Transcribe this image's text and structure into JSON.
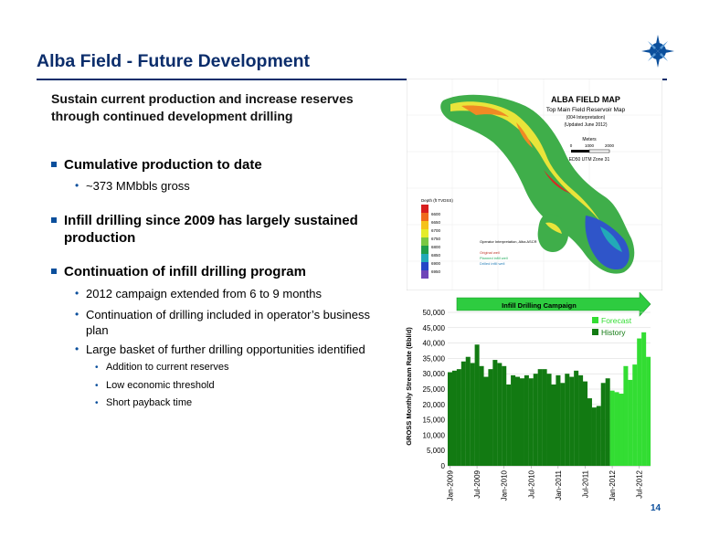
{
  "slide": {
    "title": "Alba Field - Future Development",
    "subtitle": "Sustain current production and increase reserves through continued development drilling",
    "page_number": "14"
  },
  "bullets": [
    {
      "text": "Cumulative production to date",
      "children": [
        {
          "text": "~373 MMbbls gross"
        }
      ]
    },
    {
      "text": "Infill drilling since 2009 has largely sustained production"
    },
    {
      "text": "Continuation of infill drilling program",
      "children": [
        {
          "text": "2012 campaign extended from 6 to 9 months"
        },
        {
          "text": "Continuation of drilling included in operator’s business plan"
        },
        {
          "text": "Large basket of further drilling opportunities identified",
          "children": [
            {
              "text": "Addition to current reserves"
            },
            {
              "text": "Low economic threshold"
            },
            {
              "text": "Short payback time"
            }
          ]
        }
      ]
    }
  ],
  "map": {
    "title": "ALBA FIELD MAP",
    "subtitle": "Top Main Field Reservoir Map",
    "interp": "(004 Interpretation)",
    "updated": "(Updated June 2012)",
    "scale_unit": "Meters",
    "scale_ticks": [
      "0",
      "1000",
      "2000"
    ],
    "datum": "ED50 UTM Zone 31",
    "depth_label": "Depth (ft TVDSS)",
    "depth_values": [
      "6600",
      "6650",
      "6700",
      "6750",
      "6800",
      "6850",
      "6900",
      "6950"
    ],
    "depth_colors": [
      "#d81e1e",
      "#ef6a1c",
      "#f5c21b",
      "#e5ec2a",
      "#79c843",
      "#1f9e4a",
      "#22aab7",
      "#2446c7",
      "#6f45b8"
    ],
    "coastline_note": "Operator Interpretation, Alba ASCR",
    "legend_lines": [
      "Original well",
      "Planned infill well",
      "Drilled infill well"
    ]
  },
  "chart_data": {
    "type": "bar",
    "ylabel": "GROSS Monthly Stream Rate (Bbl/d)",
    "ylim": [
      0,
      50000
    ],
    "yticks": [
      0,
      5000,
      10000,
      15000,
      20000,
      25000,
      30000,
      35000,
      40000,
      45000,
      50000
    ],
    "ytick_labels": [
      "0",
      "5,000",
      "10,000",
      "15,000",
      "20,000",
      "25,000",
      "30,000",
      "35,000",
      "40,000",
      "45,000",
      "50,000"
    ],
    "xtick_labels": [
      "Jan-2009",
      "Jul-2009",
      "Jan-2010",
      "Jul-2010",
      "Jan-2011",
      "Jul-2011",
      "Jan-2012",
      "Jul-2012"
    ],
    "xtick_months": [
      0,
      6,
      12,
      18,
      24,
      30,
      36,
      42
    ],
    "annotation": "Infill Drilling Campaign",
    "legend": "top-right",
    "colors": {
      "History": "#127a12",
      "Forecast": "#33dd33",
      "arrow": "#2ecc40"
    },
    "series": [
      {
        "name": "History",
        "values": [
          30500,
          31000,
          31500,
          34000,
          35500,
          33500,
          39500,
          32500,
          29000,
          31500,
          34500,
          33500,
          32500,
          26500,
          29500,
          29000,
          28500,
          29500,
          28500,
          30000,
          31500,
          31500,
          30000,
          26500,
          29500,
          27000,
          30000,
          29000,
          31000,
          29500,
          27500,
          22000,
          19000,
          19500,
          27000,
          28500
        ]
      },
      {
        "name": "Forecast",
        "values": [
          24500,
          24000,
          23500,
          32500,
          28000,
          33000,
          41500,
          43500,
          35500
        ]
      }
    ]
  }
}
